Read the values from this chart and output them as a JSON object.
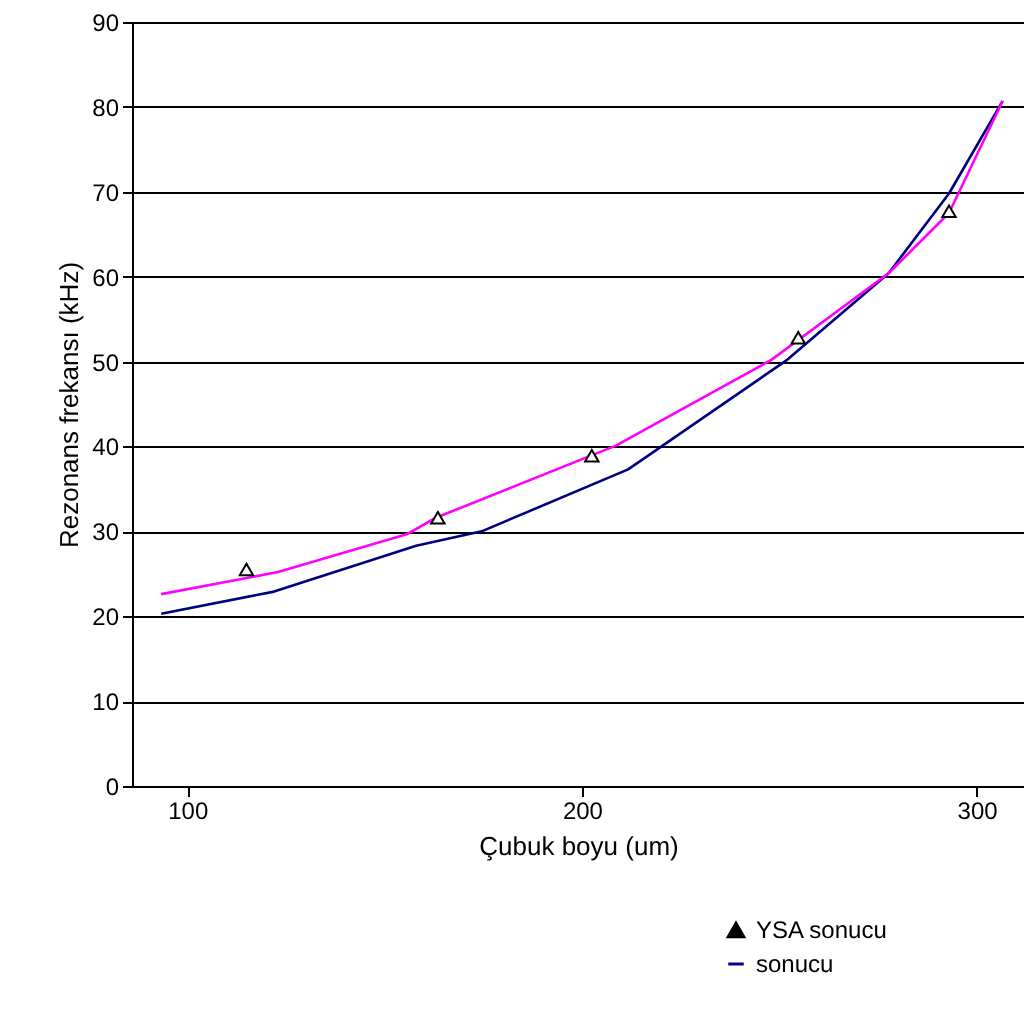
{
  "chart_data": {
    "type": "line",
    "xlabel": "Çubuk boyu (um)",
    "ylabel": "Rezonans frekansı (kHz)",
    "xlim": [
      86,
      312
    ],
    "xticks": [
      100,
      200,
      300
    ],
    "ylim": [
      0,
      90
    ],
    "yticks": [
      0,
      10,
      20,
      30,
      40,
      50,
      60,
      70,
      80,
      90
    ],
    "grid": "y",
    "legend": "bottom right",
    "series": [
      {
        "name": "YSA sonucu",
        "type": "scatter",
        "marker": "triangle",
        "color": "#000000",
        "x": [
          115,
          163.5,
          202.5,
          254.8,
          293
        ],
        "values": [
          25.5,
          31.6,
          38.9,
          52.8,
          67.7
        ]
      },
      {
        "name": "sonucu",
        "color": "#000080",
        "x": [
          93.4,
          122,
          158,
          174.6,
          211.7,
          252,
          277.7,
          293,
          306.6
        ],
        "values": [
          20.3,
          22.9,
          28.3,
          30,
          37.3,
          50.2,
          60.4,
          69.8,
          80.7
        ]
      },
      {
        "color": "#ff00ff",
        "x": [
          93.4,
          123,
          155.8,
          163,
          208.6,
          248,
          277.7,
          293,
          306.6
        ],
        "values": [
          22.6,
          25.2,
          29.7,
          31.6,
          40.1,
          50.2,
          60.4,
          67.5,
          80.7
        ]
      }
    ]
  }
}
